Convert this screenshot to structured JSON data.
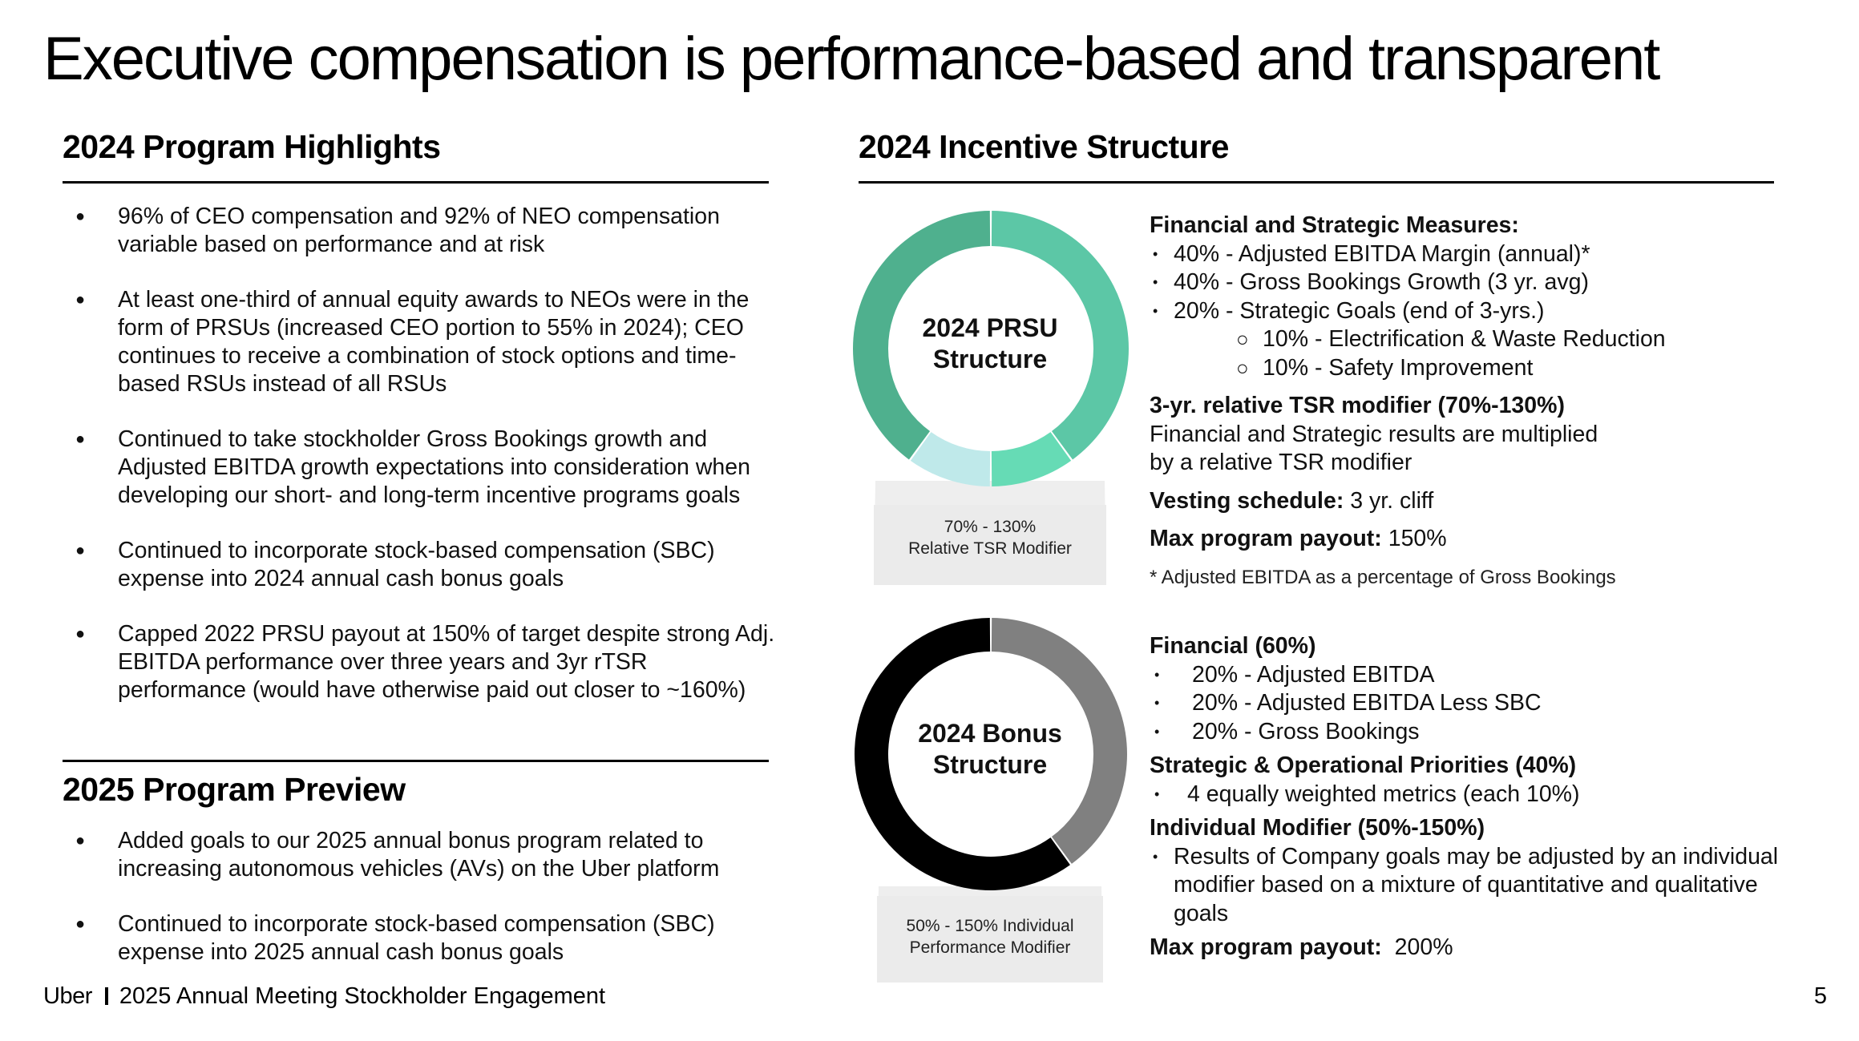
{
  "title": "Executive compensation is performance-based and transparent",
  "highlights": {
    "heading": "2024 Program Highlights",
    "items": [
      "96% of CEO compensation and 92% of NEO compensation variable based on performance and at risk",
      "At least one-third of annual equity awards to NEOs were in the form of PRSUs (increased CEO portion to 55% in 2024); CEO continues to receive a combination of stock options and time-based RSUs instead of all RSUs",
      "Continued to take stockholder Gross Bookings growth and Adjusted EBITDA growth expectations into consideration when developing our short- and long-term incentive programs goals",
      "Continued to incorporate stock-based compensation (SBC) expense into 2024 annual cash bonus goals",
      "Capped 2022 PRSU payout at 150% of target despite strong Adj. EBITDA performance over three years and 3yr rTSR performance (would have otherwise paid out closer to ~160%)"
    ]
  },
  "preview": {
    "heading": "2025 Program Preview",
    "items": [
      "Added goals to our 2025 annual bonus program related to increasing autonomous vehicles (AVs) on the Uber platform",
      "Continued to incorporate stock-based compensation (SBC) expense into 2025 annual cash bonus goals"
    ]
  },
  "incentive": {
    "heading": "2024 Incentive Structure",
    "prsu": {
      "label_line1": "2024 PRSU",
      "label_line2": "Structure",
      "stand_line1": "70% - 130%",
      "stand_line2": "Relative TSR Modifier",
      "segments": [
        {
          "name": "Gross Bookings Growth",
          "percent": 40,
          "color": "#5cc7a6"
        },
        {
          "name": "Electrification & Waste Reduction",
          "percent": 10,
          "color": "#66dbb5"
        },
        {
          "name": "Safety Improvement",
          "percent": 10,
          "color": "#bfe9ea"
        },
        {
          "name": "Adjusted EBITDA Margin",
          "percent": 40,
          "color": "#4fb08e"
        }
      ],
      "measures_heading": "Financial and Strategic Measures:",
      "measures": [
        "40% - Adjusted EBITDA Margin (annual)*",
        "40% - Gross Bookings Growth (3 yr. avg)",
        "20% - Strategic Goals (end of 3-yrs.)"
      ],
      "sub_measures": [
        "10% - Electrification & Waste Reduction",
        "10% - Safety Improvement"
      ],
      "tsr_heading": "3-yr. relative TSR modifier (70%-130%)",
      "tsr_text_line1": "Financial and Strategic results are multiplied",
      "tsr_text_line2": "by a relative TSR modifier",
      "vesting_label": "Vesting schedule:",
      "vesting_value": "3 yr. cliff",
      "max_label": "Max program payout:",
      "max_value": "150%",
      "footnote": "* Adjusted EBITDA as a percentage of Gross Bookings"
    },
    "bonus": {
      "label_line1": "2024 Bonus",
      "label_line2": "Structure",
      "stand_line1": "50% - 150% Individual",
      "stand_line2": "Performance Modifier",
      "segments": [
        {
          "name": "Strategic & Operational Priorities",
          "percent": 40,
          "color": "#808080"
        },
        {
          "name": "Financial",
          "percent": 60,
          "color": "#000000"
        }
      ],
      "financial_heading": "Financial (60%)",
      "financial_items": [
        "20% - Adjusted EBITDA",
        "20% - Adjusted EBITDA Less SBC",
        "20% - Gross Bookings"
      ],
      "strategic_heading": "Strategic & Operational Priorities (40%)",
      "strategic_items": [
        "4 equally weighted metrics (each 10%)"
      ],
      "individual_heading": "Individual Modifier (50%-150%)",
      "individual_line1": "Results of Company goals may be adjusted by an individual",
      "individual_line2": "modifier based on a mixture of quantitative and qualitative",
      "individual_line3": "goals",
      "max_label": "Max program payout:",
      "max_value": "200%"
    }
  },
  "footer": {
    "brand": "Uber",
    "text": "2025 Annual Meeting Stockholder Engagement",
    "page": "5"
  }
}
